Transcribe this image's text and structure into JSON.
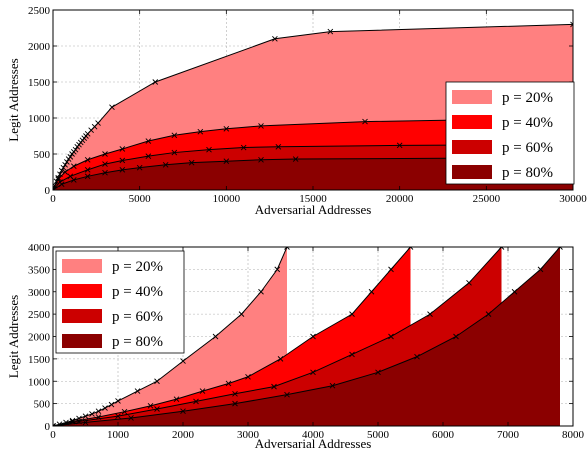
{
  "chart_data": [
    {
      "type": "area",
      "xlabel": "Adversarial Addresses",
      "ylabel": "Legit Addresses",
      "xlim": [
        0,
        30000
      ],
      "ylim": [
        0,
        2500
      ],
      "xticks": [
        "0",
        "5000",
        "10000",
        "15000",
        "20000",
        "25000",
        "30000"
      ],
      "yticks": [
        "0",
        "500",
        "1000",
        "1500",
        "2000",
        "2500"
      ],
      "xtick_values": [
        0,
        5000,
        10000,
        15000,
        20000,
        25000,
        30000
      ],
      "ytick_values": [
        0,
        500,
        1000,
        1500,
        2000,
        2500
      ],
      "grid": true,
      "legend_position": "right",
      "series": [
        {
          "name": "p = 20%",
          "color": "#ff8080",
          "x": [
            0,
            100,
            200,
            300,
            400,
            500,
            600,
            700,
            800,
            900,
            1000,
            1100,
            1200,
            1300,
            1400,
            1500,
            1600,
            1700,
            1800,
            1900,
            2000,
            2200,
            2400,
            2600,
            3400,
            5900,
            12800,
            16000,
            30000
          ],
          "y": [
            0,
            60,
            120,
            170,
            220,
            270,
            310,
            350,
            390,
            430,
            460,
            500,
            530,
            560,
            600,
            630,
            660,
            690,
            720,
            750,
            780,
            830,
            880,
            930,
            1150,
            1500,
            2100,
            2200,
            2300
          ]
        },
        {
          "name": "p = 40%",
          "color": "#ff0000",
          "x": [
            0,
            300,
            700,
            1200,
            2000,
            3000,
            4000,
            5500,
            7000,
            8500,
            10000,
            12000,
            18000,
            30000
          ],
          "y": [
            0,
            150,
            250,
            330,
            420,
            500,
            570,
            680,
            760,
            810,
            850,
            890,
            950,
            1000
          ]
        },
        {
          "name": "p = 60%",
          "color": "#cc0000",
          "x": [
            0,
            400,
            1000,
            2000,
            3000,
            4000,
            5500,
            7000,
            9000,
            11000,
            13000,
            20000,
            30000
          ],
          "y": [
            0,
            110,
            190,
            280,
            360,
            410,
            470,
            520,
            560,
            590,
            600,
            620,
            630
          ]
        },
        {
          "name": "p = 80%",
          "color": "#8b0000",
          "x": [
            0,
            500,
            1200,
            2000,
            3000,
            4000,
            5000,
            6500,
            8000,
            10000,
            12000,
            14000,
            30000
          ],
          "y": [
            0,
            80,
            140,
            190,
            240,
            280,
            310,
            350,
            380,
            400,
            420,
            430,
            450
          ]
        }
      ]
    },
    {
      "type": "area",
      "xlabel": "Adversarial Addresses",
      "ylabel": "Legit Addresses",
      "xlim": [
        0,
        8000
      ],
      "ylim": [
        0,
        4000
      ],
      "xticks": [
        "0",
        "1000",
        "2000",
        "3000",
        "4000",
        "5000",
        "6000",
        "7000",
        "8000"
      ],
      "yticks": [
        "0",
        "500",
        "1000",
        "1500",
        "2000",
        "2500",
        "3000",
        "3500",
        "4000"
      ],
      "xtick_values": [
        0,
        1000,
        2000,
        3000,
        4000,
        5000,
        6000,
        7000,
        8000
      ],
      "ytick_values": [
        0,
        500,
        1000,
        1500,
        2000,
        2500,
        3000,
        3500,
        4000
      ],
      "grid": true,
      "legend_position": "top-left",
      "series": [
        {
          "name": "p = 20%",
          "color": "#ff8080",
          "x": [
            0,
            100,
            200,
            300,
            400,
            500,
            600,
            700,
            800,
            900,
            1000,
            1300,
            1600,
            2000,
            2500,
            2900,
            3200,
            3450,
            3600
          ],
          "y": [
            0,
            40,
            80,
            120,
            170,
            220,
            270,
            330,
            400,
            480,
            560,
            780,
            1000,
            1450,
            2000,
            2500,
            3000,
            3500,
            4000
          ]
        },
        {
          "name": "p = 40%",
          "color": "#ff0000",
          "x": [
            0,
            300,
            700,
            1100,
            1500,
            1900,
            2300,
            2700,
            3000,
            3500,
            4000,
            4600,
            4900,
            5200,
            5500
          ],
          "y": [
            0,
            100,
            200,
            320,
            450,
            600,
            780,
            950,
            1100,
            1500,
            2000,
            2500,
            3000,
            3500,
            4000
          ]
        },
        {
          "name": "p = 60%",
          "color": "#cc0000",
          "x": [
            0,
            400,
            1000,
            1600,
            2200,
            2800,
            3400,
            4000,
            4600,
            5200,
            5800,
            6400,
            6900
          ],
          "y": [
            0,
            100,
            220,
            380,
            550,
            720,
            880,
            1200,
            1600,
            2000,
            2500,
            3200,
            4000
          ]
        },
        {
          "name": "p = 80%",
          "color": "#8b0000",
          "x": [
            0,
            500,
            1200,
            2000,
            2800,
            3600,
            4300,
            5000,
            5600,
            6200,
            6700,
            7100,
            7500,
            7800
          ],
          "y": [
            0,
            80,
            180,
            330,
            500,
            700,
            900,
            1200,
            1550,
            2000,
            2500,
            3000,
            3500,
            4000
          ]
        }
      ]
    }
  ]
}
